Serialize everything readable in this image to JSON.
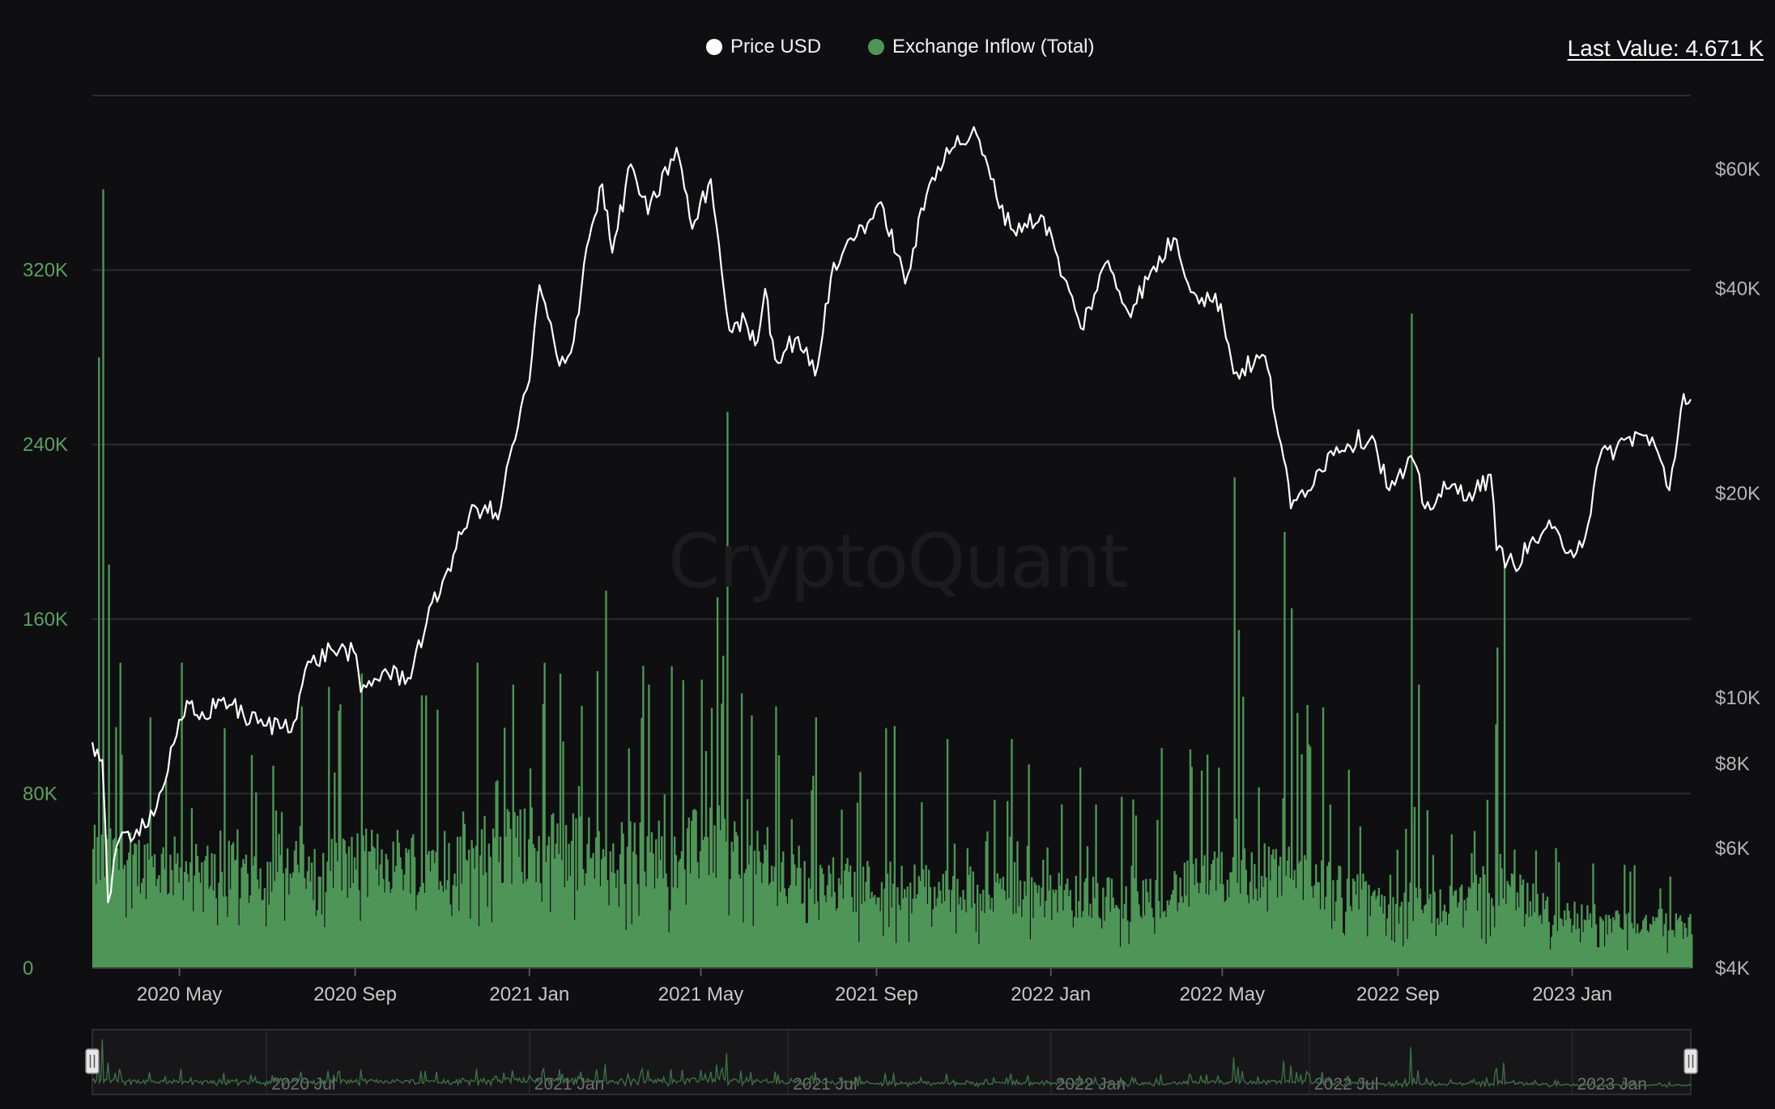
{
  "legend": {
    "price_label": "Price USD",
    "inflow_label": "Exchange Inflow (Total)"
  },
  "last_value": "Last Value: 4.671 K",
  "watermark": "CryptoQuant",
  "colors": {
    "background": "#0f0f11",
    "price": "#ffffff",
    "inflow": "#4f9558",
    "left_axis_text": "#5e9e63",
    "right_axis_text": "#b5b5b5",
    "grid": "#2c2c2f"
  },
  "chart_data": {
    "type": "bar+line",
    "x_range": [
      "2020-03-01",
      "2023-03-25"
    ],
    "x_tick_labels": [
      {
        "date": "2020-05-01",
        "label": "2020 May"
      },
      {
        "date": "2020-09-01",
        "label": "2020 Sep"
      },
      {
        "date": "2021-01-01",
        "label": "2021 Jan"
      },
      {
        "date": "2021-05-01",
        "label": "2021 May"
      },
      {
        "date": "2021-09-01",
        "label": "2021 Sep"
      },
      {
        "date": "2022-01-01",
        "label": "2022 Jan"
      },
      {
        "date": "2022-05-01",
        "label": "2022 May"
      },
      {
        "date": "2022-09-01",
        "label": "2022 Sep"
      },
      {
        "date": "2023-01-01",
        "label": "2023 Jan"
      }
    ],
    "left_axis": {
      "scale": "linear",
      "range": [
        0,
        400000
      ],
      "ticks": [
        {
          "value": 0,
          "label": "0"
        },
        {
          "value": 80000,
          "label": "80K"
        },
        {
          "value": 160000,
          "label": "160K"
        },
        {
          "value": 240000,
          "label": "240K"
        },
        {
          "value": 320000,
          "label": "320K"
        }
      ]
    },
    "right_axis": {
      "scale": "log",
      "range": [
        4000,
        77000
      ],
      "ticks": [
        {
          "value": 4000,
          "label": "$4K"
        },
        {
          "value": 6000,
          "label": "$6K"
        },
        {
          "value": 8000,
          "label": "$8K"
        },
        {
          "value": 10000,
          "label": "$10K"
        },
        {
          "value": 20000,
          "label": "$20K"
        },
        {
          "value": 40000,
          "label": "$40K"
        },
        {
          "value": 60000,
          "label": "$60K"
        }
      ]
    },
    "grid": true,
    "legend_position": "top-center",
    "series": [
      {
        "name": "Price USD",
        "type": "line",
        "axis": "right",
        "points": [
          [
            "2020-03-01",
            8600
          ],
          [
            "2020-03-08",
            8100
          ],
          [
            "2020-03-12",
            5000
          ],
          [
            "2020-03-20",
            6200
          ],
          [
            "2020-04-01",
            6400
          ],
          [
            "2020-04-15",
            6900
          ],
          [
            "2020-04-29",
            8800
          ],
          [
            "2020-05-08",
            9800
          ],
          [
            "2020-05-15",
            9300
          ],
          [
            "2020-06-01",
            10000
          ],
          [
            "2020-06-15",
            9400
          ],
          [
            "2020-07-01",
            9100
          ],
          [
            "2020-07-20",
            9200
          ],
          [
            "2020-07-28",
            11000
          ],
          [
            "2020-08-15",
            11800
          ],
          [
            "2020-08-31",
            11700
          ],
          [
            "2020-09-05",
            10200
          ],
          [
            "2020-09-20",
            10900
          ],
          [
            "2020-10-08",
            10700
          ],
          [
            "2020-10-21",
            12900
          ],
          [
            "2020-11-05",
            15500
          ],
          [
            "2020-11-20",
            18600
          ],
          [
            "2020-12-01",
            19200
          ],
          [
            "2020-12-10",
            18300
          ],
          [
            "2020-12-20",
            23500
          ],
          [
            "2021-01-01",
            29300
          ],
          [
            "2021-01-08",
            40500
          ],
          [
            "2021-01-22",
            30800
          ],
          [
            "2021-02-01",
            33500
          ],
          [
            "2021-02-10",
            46000
          ],
          [
            "2021-02-21",
            57000
          ],
          [
            "2021-02-28",
            45200
          ],
          [
            "2021-03-13",
            61000
          ],
          [
            "2021-03-25",
            51500
          ],
          [
            "2021-04-14",
            64500
          ],
          [
            "2021-04-25",
            49000
          ],
          [
            "2021-05-08",
            58000
          ],
          [
            "2021-05-12",
            49500
          ],
          [
            "2021-05-19",
            37000
          ],
          [
            "2021-05-23",
            34500
          ],
          [
            "2021-06-01",
            36000
          ],
          [
            "2021-06-08",
            33000
          ],
          [
            "2021-06-15",
            40000
          ],
          [
            "2021-06-22",
            31500
          ],
          [
            "2021-07-08",
            34000
          ],
          [
            "2021-07-20",
            29800
          ],
          [
            "2021-07-31",
            41500
          ],
          [
            "2021-08-14",
            47500
          ],
          [
            "2021-08-22",
            49500
          ],
          [
            "2021-09-06",
            52500
          ],
          [
            "2021-09-21",
            40700
          ],
          [
            "2021-10-06",
            55000
          ],
          [
            "2021-10-20",
            64500
          ],
          [
            "2021-11-10",
            67500
          ],
          [
            "2021-11-20",
            58000
          ],
          [
            "2021-12-04",
            49000
          ],
          [
            "2021-12-27",
            51000
          ],
          [
            "2022-01-10",
            41500
          ],
          [
            "2022-01-22",
            35000
          ],
          [
            "2022-02-10",
            44000
          ],
          [
            "2022-02-24",
            37000
          ],
          [
            "2022-03-28",
            47500
          ],
          [
            "2022-04-11",
            39500
          ],
          [
            "2022-04-30",
            38000
          ],
          [
            "2022-05-09",
            30000
          ],
          [
            "2022-05-31",
            31800
          ],
          [
            "2022-06-13",
            22500
          ],
          [
            "2022-06-18",
            19000
          ],
          [
            "2022-07-08",
            21700
          ],
          [
            "2022-07-20",
            23400
          ],
          [
            "2022-08-14",
            24300
          ],
          [
            "2022-08-26",
            20200
          ],
          [
            "2022-09-12",
            22300
          ],
          [
            "2022-09-20",
            19000
          ],
          [
            "2022-10-05",
            20300
          ],
          [
            "2022-10-25",
            20100
          ],
          [
            "2022-11-05",
            21300
          ],
          [
            "2022-11-09",
            16500
          ],
          [
            "2022-11-21",
            15700
          ],
          [
            "2022-12-14",
            17800
          ],
          [
            "2022-12-31",
            16500
          ],
          [
            "2023-01-10",
            17200
          ],
          [
            "2023-01-20",
            22500
          ],
          [
            "2023-02-16",
            24500
          ],
          [
            "2023-02-28",
            23500
          ],
          [
            "2023-03-10",
            20200
          ],
          [
            "2023-03-20",
            28000
          ],
          [
            "2023-03-25",
            27500
          ]
        ]
      },
      {
        "name": "Exchange Inflow (Total)",
        "type": "bar",
        "axis": "left",
        "baseline_points": [
          [
            "2020-03-01",
            60000
          ],
          [
            "2020-05-01",
            55000
          ],
          [
            "2020-07-01",
            52000
          ],
          [
            "2020-09-01",
            58000
          ],
          [
            "2020-11-01",
            62000
          ],
          [
            "2021-01-01",
            68000
          ],
          [
            "2021-03-01",
            62000
          ],
          [
            "2021-05-15",
            68000
          ],
          [
            "2021-07-01",
            48000
          ],
          [
            "2021-09-01",
            46000
          ],
          [
            "2021-11-01",
            43000
          ],
          [
            "2022-01-01",
            40000
          ],
          [
            "2022-03-01",
            38000
          ],
          [
            "2022-05-10",
            52000
          ],
          [
            "2022-06-20",
            54000
          ],
          [
            "2022-08-01",
            40000
          ],
          [
            "2022-10-01",
            34000
          ],
          [
            "2022-11-12",
            48000
          ],
          [
            "2022-12-15",
            30000
          ],
          [
            "2023-02-01",
            26000
          ],
          [
            "2023-03-25",
            24000
          ]
        ],
        "spikes": [
          [
            "2020-03-05",
            280000
          ],
          [
            "2020-03-08",
            357000
          ],
          [
            "2020-03-12",
            185000
          ],
          [
            "2020-03-20",
            140000
          ],
          [
            "2020-04-10",
            115000
          ],
          [
            "2020-05-02",
            140000
          ],
          [
            "2020-06-01",
            110000
          ],
          [
            "2020-07-25",
            120000
          ],
          [
            "2020-08-20",
            118000
          ],
          [
            "2020-09-05",
            135000
          ],
          [
            "2020-10-20",
            125000
          ],
          [
            "2020-11-25",
            140000
          ],
          [
            "2020-12-20",
            130000
          ],
          [
            "2021-01-11",
            140000
          ],
          [
            "2021-01-22",
            135000
          ],
          [
            "2021-02-23",
            173000
          ],
          [
            "2021-03-25",
            130000
          ],
          [
            "2021-04-18",
            132000
          ],
          [
            "2021-05-19",
            255000
          ],
          [
            "2021-05-12",
            170000
          ],
          [
            "2021-06-22",
            120000
          ],
          [
            "2021-07-20",
            115000
          ],
          [
            "2021-08-20",
            90000
          ],
          [
            "2021-09-07",
            110000
          ],
          [
            "2021-10-20",
            105000
          ],
          [
            "2021-12-04",
            105000
          ],
          [
            "2022-01-21",
            92000
          ],
          [
            "2022-03-01",
            70000
          ],
          [
            "2022-05-09",
            225000
          ],
          [
            "2022-05-12",
            155000
          ],
          [
            "2022-06-13",
            200000
          ],
          [
            "2022-06-18",
            165000
          ],
          [
            "2022-07-15",
            75000
          ],
          [
            "2022-09-10",
            300000
          ],
          [
            "2022-09-15",
            130000
          ],
          [
            "2022-11-09",
            147000
          ],
          [
            "2022-11-14",
            185000
          ],
          [
            "2022-12-20",
            55000
          ],
          [
            "2023-01-15",
            48000
          ],
          [
            "2023-03-10",
            42000
          ]
        ]
      }
    ],
    "navigator": {
      "tick_labels": [
        {
          "date": "2020-07-01",
          "label": "2020 Jul"
        },
        {
          "date": "2021-01-01",
          "label": "2021 Jan"
        },
        {
          "date": "2021-07-01",
          "label": "2021 Jul"
        },
        {
          "date": "2022-01-01",
          "label": "2022 Jan"
        },
        {
          "date": "2022-07-01",
          "label": "2022 Jul"
        },
        {
          "date": "2023-01-01",
          "label": "2023 Jan"
        }
      ]
    }
  }
}
